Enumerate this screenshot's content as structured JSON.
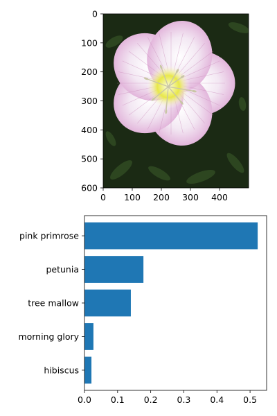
{
  "chart_data": [
    {
      "type": "image",
      "subject": "pink primrose flower photo",
      "colors": {
        "background": "#1b2a14",
        "petal": "#f3e8f3",
        "petal_edge": "#e3b7dc",
        "vein": "#c98ab9",
        "center": "#e8e84a",
        "stamen": "#c9c6a6"
      },
      "x": {
        "lim": [
          0,
          500
        ],
        "ticks": [
          0,
          100,
          200,
          300,
          400
        ],
        "labels": [
          "0",
          "100",
          "200",
          "300",
          "400"
        ]
      },
      "y": {
        "lim": [
          600,
          0
        ],
        "ticks": [
          0,
          100,
          200,
          300,
          400,
          500,
          600
        ],
        "labels": [
          "0",
          "100",
          "200",
          "300",
          "400",
          "500",
          "600"
        ]
      }
    },
    {
      "type": "bar",
      "orientation": "horizontal",
      "categories": [
        "pink primrose",
        "petunia",
        "tree mallow",
        "morning glory",
        "hibiscus"
      ],
      "values": [
        0.523,
        0.178,
        0.14,
        0.027,
        0.021
      ],
      "color": "#1f77b4",
      "xlim": [
        0,
        0.55
      ],
      "xticks": [
        0.0,
        0.1,
        0.2,
        0.3,
        0.4,
        0.5
      ],
      "xtick_labels": [
        "0.0",
        "0.1",
        "0.2",
        "0.3",
        "0.4",
        "0.5"
      ],
      "grid": false,
      "legend": false
    }
  ]
}
